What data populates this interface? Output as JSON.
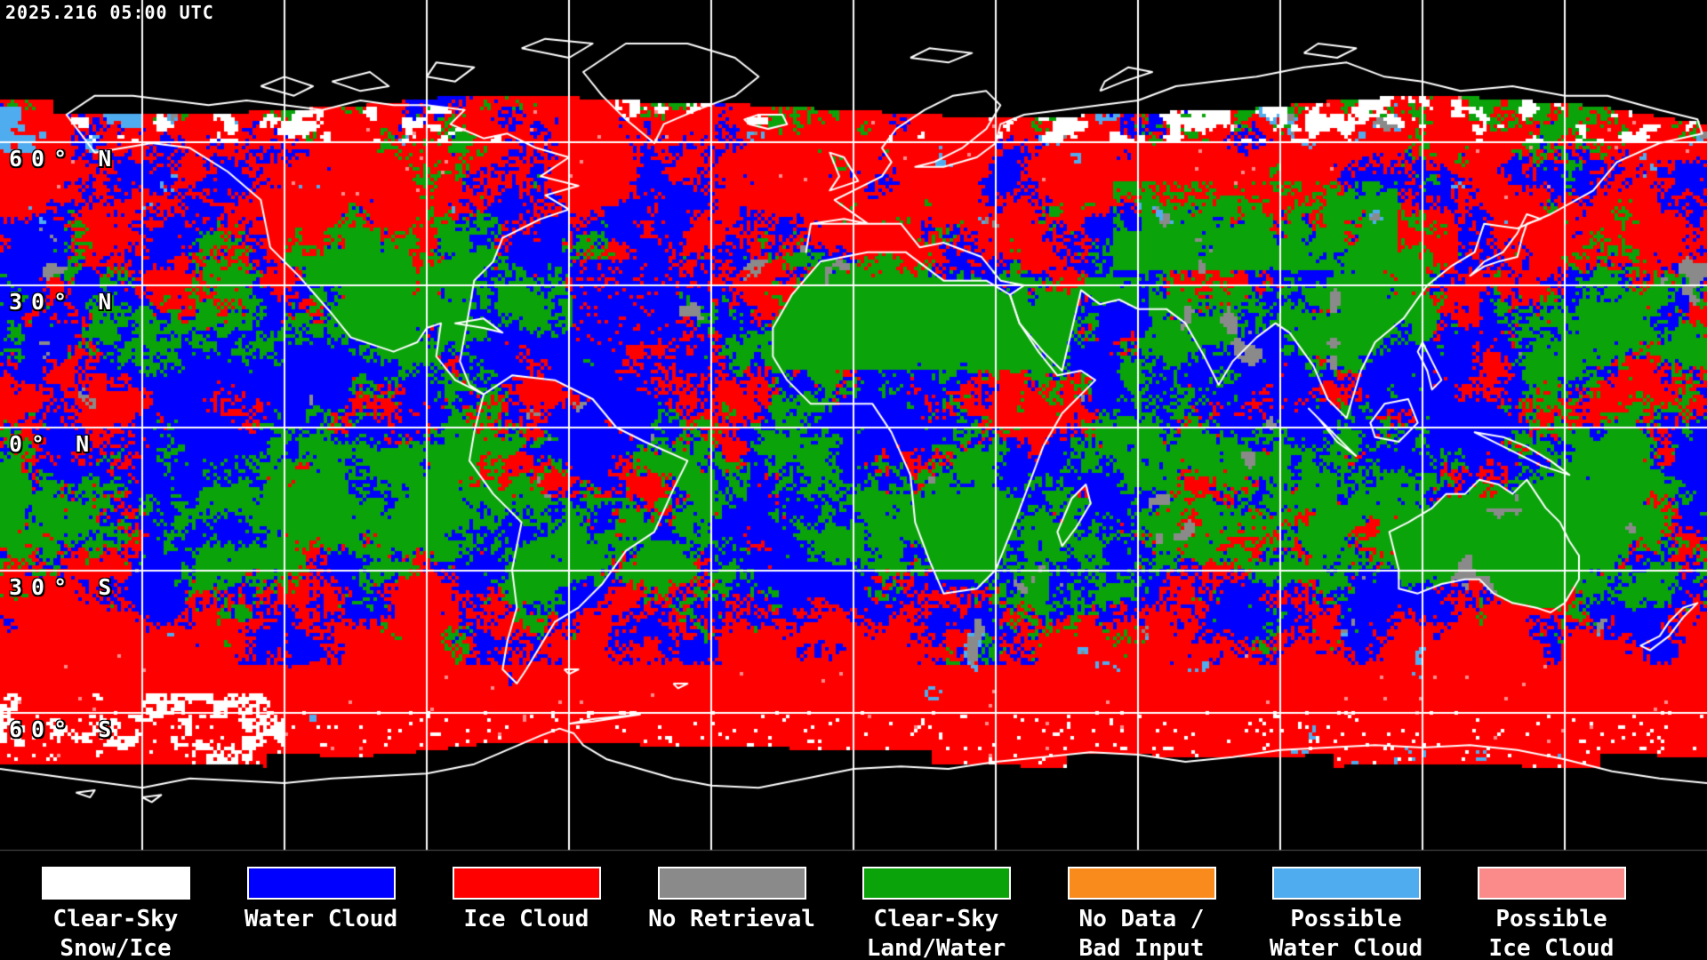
{
  "header": {
    "timestamp": "2025.216 05:00 UTC"
  },
  "map": {
    "background_color": "#000000",
    "gridline_color": "#FFFFFF",
    "coastline_color": "#FFFFFF",
    "grid": {
      "lat_interval_deg": 30,
      "lon_interval_deg": 30
    },
    "latitude_labels": [
      {
        "text": "60° N"
      },
      {
        "text": "30° N"
      },
      {
        "text": "0° N"
      },
      {
        "text": "30° S"
      },
      {
        "text": "60° S"
      }
    ]
  },
  "legend": {
    "items": [
      {
        "label_line1": "Clear-Sky",
        "label_line2": "Snow/Ice",
        "color": "#FFFFFF"
      },
      {
        "label_line1": "Water Cloud",
        "label_line2": "",
        "color": "#0000FF"
      },
      {
        "label_line1": "Ice Cloud",
        "label_line2": "",
        "color": "#FF0000"
      },
      {
        "label_line1": "No Retrieval",
        "label_line2": "",
        "color": "#8A8A8A"
      },
      {
        "label_line1": "Clear-Sky",
        "label_line2": "Land/Water",
        "color": "#0AA30A"
      },
      {
        "label_line1": "No Data /",
        "label_line2": "Bad Input",
        "color": "#F98B1C"
      },
      {
        "label_line1": "Possible",
        "label_line2": "Water Cloud",
        "color": "#4FADEF"
      },
      {
        "label_line1": "Possible",
        "label_line2": "Ice Cloud",
        "color": "#FB8B8B"
      }
    ]
  }
}
